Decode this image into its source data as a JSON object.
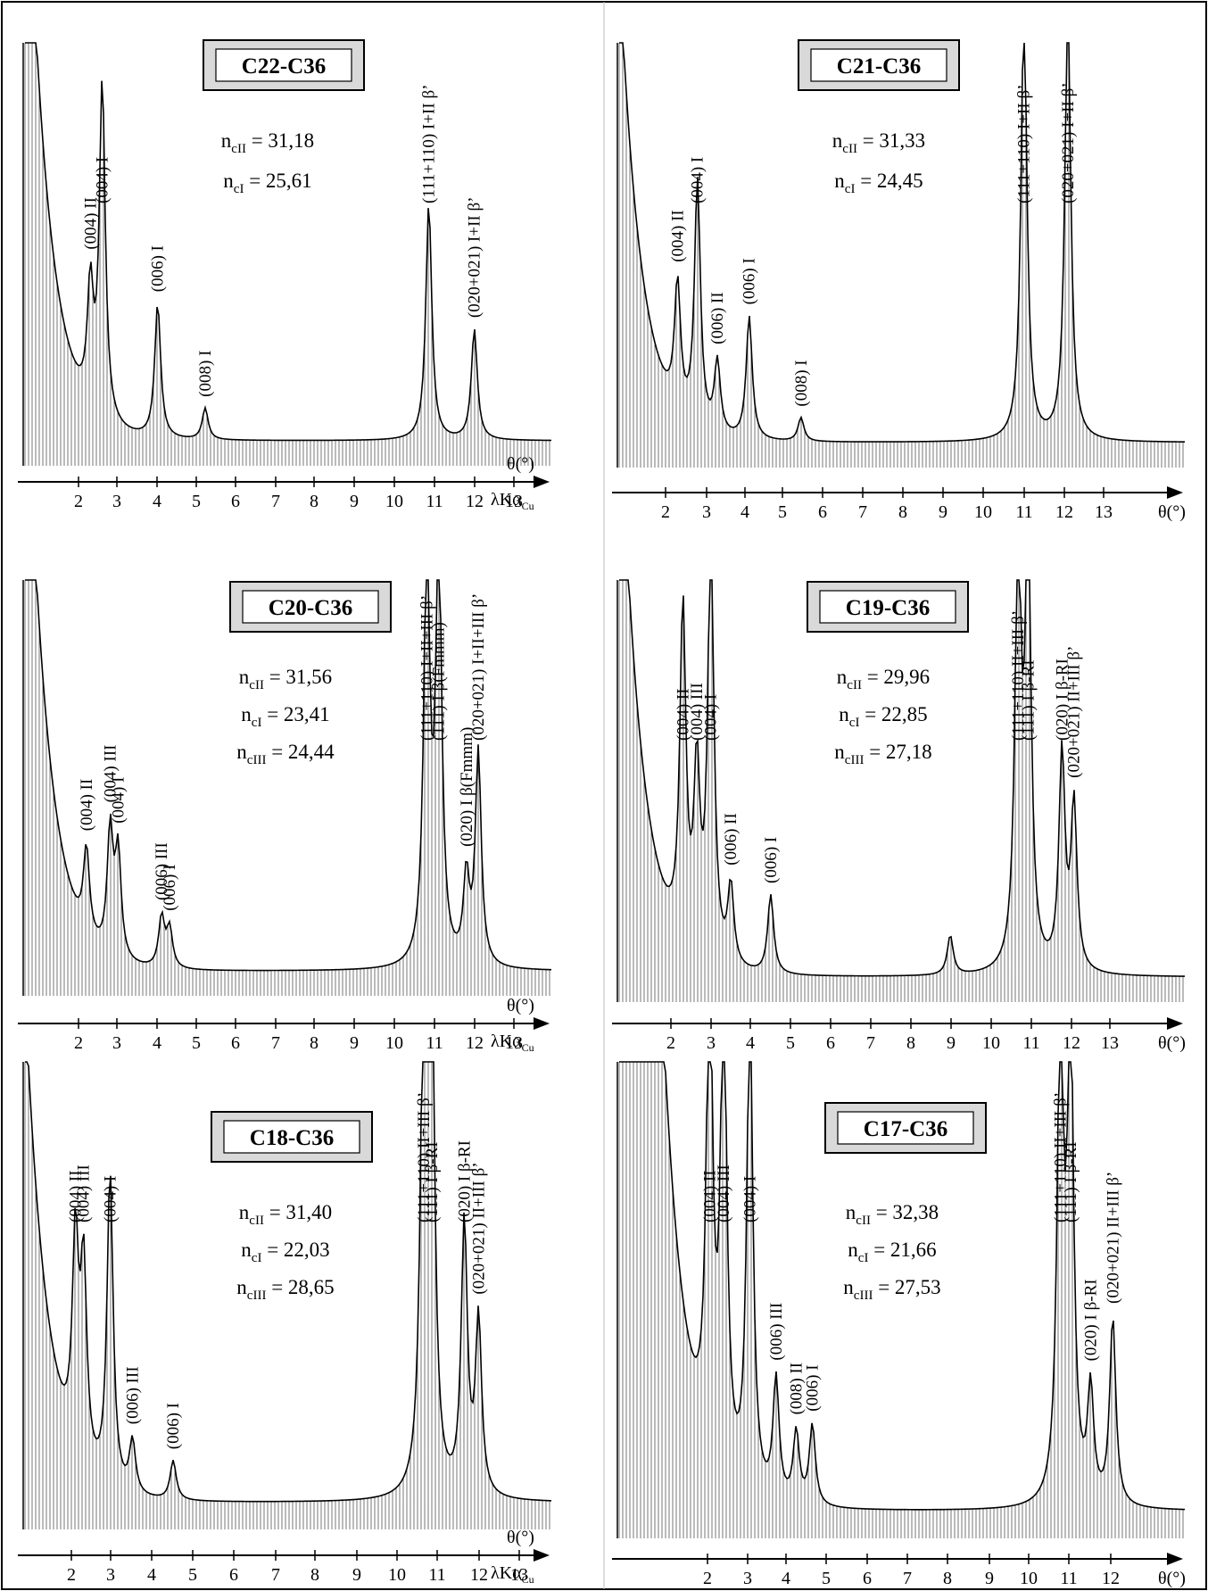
{
  "figure": {
    "border_color": "#000000",
    "title_box_fill": "#d9d9d9"
  },
  "chart_data": [
    {
      "type": "line",
      "title": "C22-C36",
      "xlabel": "θ(°)",
      "xlabel2": "λKα",
      "xlabel2_sub": "Cu",
      "xlim": [
        1,
        14
      ],
      "xticks": [
        2,
        3,
        4,
        5,
        6,
        7,
        8,
        9,
        10,
        11,
        12,
        13
      ],
      "n_values": [
        {
          "sym": "n",
          "sub": "cII",
          "text": " = 31,18"
        },
        {
          "sym": "n",
          "sub": "cI",
          "text": " = 25,61"
        }
      ],
      "peaks": [
        {
          "x": 2.3,
          "y": 0.3,
          "label": "(004) II"
        },
        {
          "x": 2.6,
          "y": 0.85,
          "label": "(004) I"
        },
        {
          "x": 4.0,
          "y": 0.34,
          "label": "(006) I"
        },
        {
          "x": 5.2,
          "y": 0.08,
          "label": "(008) I"
        },
        {
          "x": 10.85,
          "y": 0.6,
          "label": "(111+110) I+II β’"
        },
        {
          "x": 12.0,
          "y": 0.28,
          "label": "(020+021) I+II β’"
        }
      ]
    },
    {
      "type": "line",
      "title": "C21-C36",
      "xlabel": "θ(°)",
      "xlim": [
        1,
        14
      ],
      "xticks": [
        2,
        3,
        4,
        5,
        6,
        7,
        8,
        9,
        10,
        11,
        12,
        13
      ],
      "n_values": [
        {
          "sym": "n",
          "sub": "cII",
          "text": " = 31,33"
        },
        {
          "sym": "n",
          "sub": "cI",
          "text": " = 24,45"
        }
      ],
      "peaks": [
        {
          "x": 2.3,
          "y": 0.32,
          "label": "(004) II"
        },
        {
          "x": 2.8,
          "y": 0.62,
          "label": "(004) I"
        },
        {
          "x": 3.3,
          "y": 0.18,
          "label": "(006) II"
        },
        {
          "x": 4.1,
          "y": 0.31,
          "label": "(006) I"
        },
        {
          "x": 5.4,
          "y": 0.06,
          "label": "(008) I"
        },
        {
          "x": 11.0,
          "y": 1.1,
          "label": "(111+110) I+II β’"
        },
        {
          "x": 12.1,
          "y": 1.1,
          "label": "(020+021) I+II β’"
        }
      ]
    },
    {
      "type": "line",
      "title": "C20-C36",
      "xlabel": "θ(°)",
      "xlabel2": "λKα",
      "xlabel2_sub": "Cu",
      "xlim": [
        1,
        14
      ],
      "xticks": [
        2,
        3,
        4,
        5,
        6,
        7,
        8,
        9,
        10,
        11,
        12,
        13
      ],
      "n_values": [
        {
          "sym": "n",
          "sub": "cII",
          "text": " = 31,56"
        },
        {
          "sym": "n",
          "sub": "cI",
          "text": " = 23,41"
        },
        {
          "sym": "n",
          "sub": "cIII",
          "text": " = 24,44"
        }
      ],
      "peaks": [
        {
          "x": 2.2,
          "y": 0.22,
          "label": "(004) II"
        },
        {
          "x": 2.8,
          "y": 0.32,
          "label": "(004) III"
        },
        {
          "x": 3.0,
          "y": 0.27,
          "label": "(004) I"
        },
        {
          "x": 4.1,
          "y": 0.13,
          "label": "(006) III"
        },
        {
          "x": 4.3,
          "y": 0.1,
          "label": "(006) I"
        },
        {
          "x": 10.8,
          "y": 1.1,
          "label": "(111+110) I+II+III β’"
        },
        {
          "x": 11.1,
          "y": 1.1,
          "label": "(111) I β(Fmmm)"
        },
        {
          "x": 11.8,
          "y": 0.22,
          "label": "(020) I β(Fmmm)"
        },
        {
          "x": 12.1,
          "y": 0.55,
          "label": "(020+021) I+II+III β’"
        }
      ]
    },
    {
      "type": "line",
      "title": "C19-C36",
      "xlabel": "θ(°)",
      "xlim": [
        1,
        14
      ],
      "xticks": [
        2,
        3,
        4,
        5,
        6,
        7,
        8,
        9,
        10,
        11,
        12,
        13
      ],
      "n_values": [
        {
          "sym": "n",
          "sub": "cII",
          "text": " = 29,96"
        },
        {
          "sym": "n",
          "sub": "cI",
          "text": " = 22,85"
        },
        {
          "sym": "n",
          "sub": "cIII",
          "text": " = 27,18"
        }
      ],
      "peaks": [
        {
          "x": 2.3,
          "y": 0.85,
          "label": "(004) II"
        },
        {
          "x": 2.65,
          "y": 0.45,
          "label": "(004) III"
        },
        {
          "x": 3.0,
          "y": 1.1,
          "label": "(004) I"
        },
        {
          "x": 3.5,
          "y": 0.2,
          "label": "(006) II"
        },
        {
          "x": 4.5,
          "y": 0.2,
          "label": "(006) I"
        },
        {
          "x": 9.0,
          "y": 0.1,
          "label": ""
        },
        {
          "x": 10.7,
          "y": 1.1,
          "label": "(111+110) II+III β’"
        },
        {
          "x": 10.95,
          "y": 1.1,
          "label": "(111) I β-RI"
        },
        {
          "x": 11.8,
          "y": 0.55,
          "label": "(020) I β-RI"
        },
        {
          "x": 12.1,
          "y": 0.42,
          "label": "(020+021) II+III β’"
        }
      ]
    },
    {
      "type": "line",
      "title": "C18-C36",
      "xlabel": "θ(°)",
      "xlabel2": "λKα",
      "xlabel2_sub": "Cu",
      "xlim": [
        1,
        14
      ],
      "xticks": [
        2,
        3,
        4,
        5,
        6,
        7,
        8,
        9,
        10,
        11,
        12,
        13
      ],
      "n_values": [
        {
          "sym": "n",
          "sub": "cII",
          "text": " = 31,40"
        },
        {
          "sym": "n",
          "sub": "cI",
          "text": " = 22,03"
        },
        {
          "sym": "n",
          "sub": "cIII",
          "text": " = 28,65"
        }
      ],
      "peaks": [
        {
          "x": 2.1,
          "y": 0.48,
          "label": "(004) II"
        },
        {
          "x": 2.3,
          "y": 0.44,
          "label": "(004) III"
        },
        {
          "x": 2.95,
          "y": 0.72,
          "label": "(004) I"
        },
        {
          "x": 3.5,
          "y": 0.12,
          "label": "(006) III"
        },
        {
          "x": 4.5,
          "y": 0.09,
          "label": "(006) I"
        },
        {
          "x": 10.65,
          "y": 1.1,
          "label": "(111+110) II+III β’"
        },
        {
          "x": 10.85,
          "y": 1.1,
          "label": "(111) I β-RI"
        },
        {
          "x": 11.65,
          "y": 0.62,
          "label": "(020) I β-RI"
        },
        {
          "x": 12.0,
          "y": 0.4,
          "label": "(020+021) II+III β’"
        }
      ]
    },
    {
      "type": "line",
      "title": "C17-C36",
      "xlabel": "θ(°)",
      "xlim": [
        1,
        13.3
      ],
      "xticks": [
        2,
        3,
        4,
        5,
        6,
        7,
        8,
        9,
        10,
        11,
        12
      ],
      "n_values": [
        {
          "sym": "n",
          "sub": "cII",
          "text": " = 32,38"
        },
        {
          "sym": "n",
          "sub": "cI",
          "text": " = 21,66"
        },
        {
          "sym": "n",
          "sub": "cIII",
          "text": " = 27,53"
        }
      ],
      "peaks": [
        {
          "x": 2.05,
          "y": 1.1,
          "label": "(004) II"
        },
        {
          "x": 2.4,
          "y": 1.1,
          "label": "(004) III"
        },
        {
          "x": 3.05,
          "y": 1.1,
          "label": "(004) I"
        },
        {
          "x": 3.7,
          "y": 0.27,
          "label": "(006) III"
        },
        {
          "x": 4.2,
          "y": 0.16,
          "label": "(008) II"
        },
        {
          "x": 4.6,
          "y": 0.18,
          "label": "(006) I"
        },
        {
          "x": 10.75,
          "y": 1.1,
          "label": "(111+110) II+III β’"
        },
        {
          "x": 11.0,
          "y": 1.1,
          "label": "(111) I β-RI"
        },
        {
          "x": 11.5,
          "y": 0.25,
          "label": "(020) I β-RI"
        },
        {
          "x": 12.05,
          "y": 0.42,
          "label": "(020+021) II+III β’"
        }
      ]
    }
  ]
}
